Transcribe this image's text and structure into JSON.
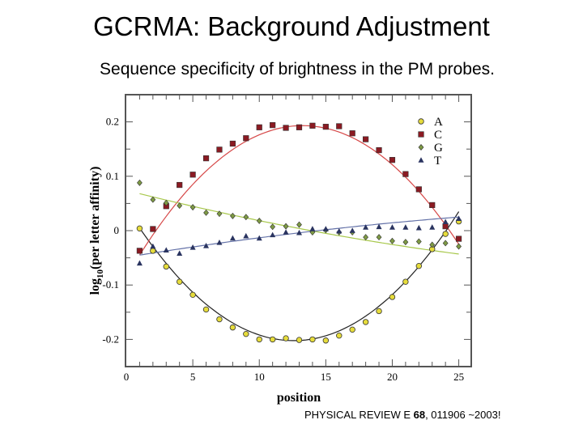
{
  "slide": {
    "title": "GCRMA: Background Adjustment",
    "subtitle": "Sequence specificity of brightness in the PM probes.",
    "citation_prefix": "PHYSICAL REVIEW E ",
    "citation_volume": "68",
    "citation_suffix": ", 011906 ~2003!"
  },
  "chart_data": {
    "type": "scatter",
    "title": "",
    "xlabel": "position",
    "ylabel_main": "log",
    "ylabel_sub": "10",
    "ylabel_rest": "(per letter affinity)",
    "xlim": [
      0,
      26
    ],
    "ylim": [
      -0.25,
      0.25
    ],
    "xticks": [
      0,
      5,
      10,
      15,
      20,
      25
    ],
    "yticks": [
      0.2,
      0.1,
      0,
      -0.1,
      -0.2
    ],
    "ytick_labels": [
      "0.2",
      "0.1",
      "0",
      "-0.1",
      "-0.2"
    ],
    "grid": false,
    "legend_placement": "top-right",
    "x": [
      1,
      2,
      3,
      4,
      5,
      6,
      7,
      8,
      9,
      10,
      11,
      12,
      13,
      14,
      15,
      16,
      17,
      18,
      19,
      20,
      21,
      22,
      23,
      24,
      25
    ],
    "series": [
      {
        "name": "A",
        "marker": "circle",
        "color": "#e6dc3c",
        "values": [
          0.004,
          -0.037,
          -0.066,
          -0.094,
          -0.118,
          -0.145,
          -0.163,
          -0.178,
          -0.19,
          -0.2,
          -0.2,
          -0.198,
          -0.201,
          -0.2,
          -0.202,
          -0.193,
          -0.182,
          -0.168,
          -0.148,
          -0.122,
          -0.094,
          -0.065,
          -0.034,
          -0.006,
          0.017
        ],
        "fit": {
          "x": [
            1,
            13,
            25
          ],
          "y": [
            0.005,
            -0.202,
            0.035
          ],
          "color": "#222222"
        }
      },
      {
        "name": "C",
        "marker": "square",
        "color": "#8b1a22",
        "values": [
          -0.037,
          0.003,
          0.045,
          0.084,
          0.103,
          0.133,
          0.149,
          0.16,
          0.17,
          0.19,
          0.194,
          0.189,
          0.19,
          0.193,
          0.191,
          0.192,
          0.179,
          0.168,
          0.148,
          0.13,
          0.104,
          0.076,
          0.047,
          0.008,
          -0.015
        ],
        "fit": {
          "x": [
            1,
            13,
            25
          ],
          "y": [
            -0.045,
            0.193,
            -0.025
          ],
          "color": "#d64848"
        }
      },
      {
        "name": "G",
        "marker": "diamond",
        "color": "#7e9a44",
        "values": [
          0.088,
          0.057,
          0.051,
          0.046,
          0.043,
          0.033,
          0.031,
          0.027,
          0.025,
          0.018,
          0.007,
          0.008,
          0.011,
          -0.003,
          0.001,
          -0.003,
          -0.003,
          -0.012,
          -0.012,
          -0.019,
          -0.021,
          -0.02,
          -0.026,
          -0.023,
          -0.029
        ],
        "fit": {
          "x": [
            1,
            13,
            25
          ],
          "y": [
            0.068,
            0.004,
            -0.043
          ],
          "color": "#a8c84c"
        }
      },
      {
        "name": "T",
        "marker": "triangle",
        "color": "#2a3460",
        "values": [
          -0.06,
          -0.029,
          -0.036,
          -0.042,
          -0.031,
          -0.028,
          -0.022,
          -0.014,
          -0.01,
          -0.014,
          -0.008,
          -0.003,
          -0.004,
          0.003,
          0.003,
          -0.001,
          0.0,
          0.006,
          0.007,
          0.006,
          0.006,
          0.005,
          0.006,
          0.016,
          0.022
        ],
        "fit": {
          "x": [
            1,
            13,
            25
          ],
          "y": [
            -0.045,
            -0.004,
            0.025
          ],
          "color": "#6472a8"
        }
      }
    ]
  }
}
